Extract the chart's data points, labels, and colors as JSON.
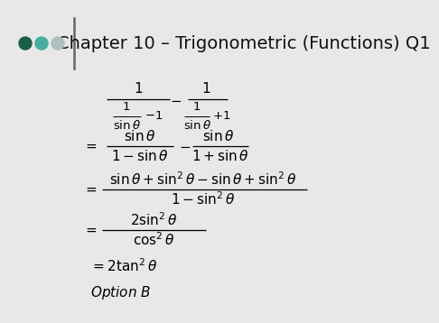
{
  "title": "Chapter 10 – Trigonometric (Functions) Q1",
  "background_color": "#e8e8e8",
  "dot_colors": [
    "#1a5e45",
    "#4aada0",
    "#adc0bd"
  ],
  "title_fontsize": 14,
  "math_fontsize": 11,
  "math_fontsize_small": 9.5
}
